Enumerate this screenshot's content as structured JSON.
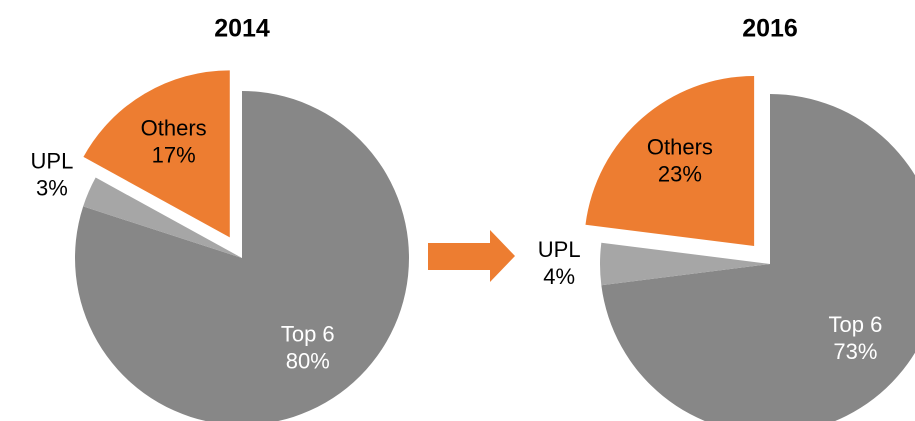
{
  "chart_data": [
    {
      "type": "pie",
      "title": "2014",
      "categories": [
        "Top 6",
        "UPL",
        "Others"
      ],
      "values": [
        80,
        3,
        17
      ],
      "value_labels": [
        "80%",
        "3%",
        "17%"
      ],
      "colors": [
        "#878787",
        "#a6a6a6",
        "#ed7d31"
      ]
    },
    {
      "type": "pie",
      "title": "2016",
      "categories": [
        "Top 6",
        "UPL",
        "Others"
      ],
      "values": [
        73,
        4,
        23
      ],
      "value_labels": [
        "73%",
        "4%",
        "23%"
      ],
      "colors": [
        "#878787",
        "#a6a6a6",
        "#ed7d31"
      ]
    }
  ]
}
